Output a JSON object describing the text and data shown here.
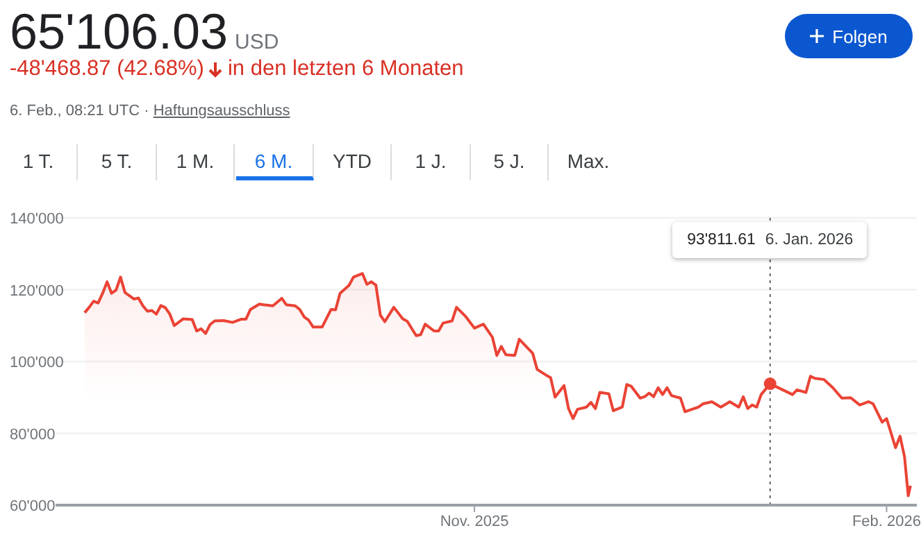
{
  "chart_data": {
    "type": "area",
    "title": "65'106.03",
    "subtitle": "-48'468.87 (42.68%)",
    "annotations": [
      "USD",
      "in den letzten 6 Monaten",
      "6. Feb., 08:21 UTC ·",
      "Haftungsausschluss",
      "Folgen",
      "1 T.",
      "5 T.",
      "1 M.",
      "6 M.",
      "YTD",
      "1 J.",
      "5 J.",
      "Max.",
      "93'811.61",
      "6. Jan. 2026"
    ],
    "x": [
      "2025-08-06",
      "2025-08-07",
      "2025-08-08",
      "2025-08-09",
      "2025-08-10",
      "2025-08-11",
      "2025-08-12",
      "2025-08-13",
      "2025-08-14",
      "2025-08-15",
      "2025-08-17",
      "2025-08-18",
      "2025-08-19",
      "2025-08-20",
      "2025-08-21",
      "2025-08-22",
      "2025-08-23",
      "2025-08-24",
      "2025-08-25",
      "2025-08-26",
      "2025-08-28",
      "2025-08-30",
      "2025-08-31",
      "2025-09-01",
      "2025-09-02",
      "2025-09-03",
      "2025-09-04",
      "2025-09-06",
      "2025-09-08",
      "2025-09-10",
      "2025-09-11",
      "2025-09-12",
      "2025-09-14",
      "2025-09-15",
      "2025-09-17",
      "2025-09-19",
      "2025-09-20",
      "2025-09-22",
      "2025-09-23",
      "2025-09-24",
      "2025-09-25",
      "2025-09-26",
      "2025-09-28",
      "2025-09-30",
      "2025-10-01",
      "2025-10-02",
      "2025-10-04",
      "2025-10-05",
      "2025-10-07",
      "2025-10-08",
      "2025-10-09",
      "2025-10-10",
      "2025-10-11",
      "2025-10-12",
      "2025-10-14",
      "2025-10-15",
      "2025-10-16",
      "2025-10-17",
      "2025-10-19",
      "2025-10-20",
      "2025-10-21",
      "2025-10-23",
      "2025-10-24",
      "2025-10-25",
      "2025-10-27",
      "2025-10-28",
      "2025-10-30",
      "2025-11-01",
      "2025-11-03",
      "2025-11-05",
      "2025-11-06",
      "2025-11-07",
      "2025-11-08",
      "2025-11-10",
      "2025-11-11",
      "2025-11-12",
      "2025-11-14",
      "2025-11-15",
      "2025-11-17",
      "2025-11-18",
      "2025-11-19",
      "2025-11-21",
      "2025-11-22",
      "2025-11-23",
      "2025-11-24",
      "2025-11-26",
      "2025-11-27",
      "2025-11-28",
      "2025-11-29",
      "2025-12-01",
      "2025-12-02",
      "2025-12-04",
      "2025-12-05",
      "2025-12-06",
      "2025-12-08",
      "2025-12-09",
      "2025-12-10",
      "2025-12-11",
      "2025-12-12",
      "2025-12-13",
      "2025-12-14",
      "2025-12-15",
      "2025-12-17",
      "2025-12-18",
      "2025-12-20",
      "2025-12-21",
      "2025-12-22",
      "2025-12-24",
      "2025-12-26",
      "2025-12-28",
      "2025-12-30",
      "2025-12-31",
      "2026-01-01",
      "2026-01-02",
      "2026-01-03",
      "2026-01-04",
      "2026-01-06",
      "2026-01-11",
      "2026-01-12",
      "2026-01-14",
      "2026-01-15",
      "2026-01-16",
      "2026-01-18",
      "2026-01-20",
      "2026-01-22",
      "2026-01-24",
      "2026-01-26",
      "2026-01-28",
      "2026-01-29",
      "2026-01-31",
      "2026-02-01",
      "2026-02-03",
      "2026-02-04",
      "2026-02-05",
      "2026-02-05T20:00",
      "2026-02-06T08:00"
    ],
    "series": [
      {
        "color": "#ea4335",
        "values": [
          113600,
          115100,
          116800,
          116300,
          119000,
          122200,
          119000,
          119900,
          123500,
          119200,
          117400,
          117700,
          115500,
          114000,
          114200,
          113200,
          115600,
          115000,
          113200,
          110000,
          111900,
          111700,
          108500,
          109100,
          107800,
          110300,
          111300,
          111400,
          110900,
          111800,
          111800,
          114500,
          116000,
          115800,
          115500,
          117600,
          115800,
          115500,
          114500,
          112400,
          111500,
          109600,
          109600,
          114500,
          114400,
          119000,
          121200,
          123500,
          124500,
          121500,
          122200,
          121300,
          112900,
          111100,
          115100,
          113500,
          111900,
          111200,
          107200,
          107500,
          110400,
          108500,
          108500,
          110700,
          111300,
          115100,
          112600,
          109300,
          110400,
          106800,
          101700,
          104200,
          101900,
          101700,
          106200,
          104900,
          102300,
          97800,
          96200,
          95500,
          90100,
          93300,
          86900,
          84100,
          86700,
          87300,
          88600,
          86900,
          91400,
          91000,
          86300,
          87300,
          93600,
          93100,
          89800,
          90200,
          91200,
          90200,
          92700,
          90800,
          92700,
          90500,
          89800,
          86000,
          86900,
          87300,
          88200,
          88800,
          87300,
          88800,
          87300,
          90200,
          86900,
          87900,
          87300,
          90800,
          93800,
          90800,
          92100,
          91400,
          95900,
          95300,
          95000,
          92700,
          89800,
          89900,
          87900,
          88800,
          88200,
          83100,
          84100,
          76000,
          79200,
          73500,
          62600,
          65400
        ]
      }
    ],
    "xlim": [
      "2025-07-30T12:00",
      "2026-02-07T18:00"
    ],
    "xticks": [
      {
        "value": "2025-11-01",
        "label": "Nov. 2025"
      },
      {
        "value": "2026-02-01",
        "label": "Feb. 2026"
      }
    ],
    "ylim": [
      60000,
      140000
    ],
    "yticks": [
      {
        "value": 60000,
        "label": "60'000"
      },
      {
        "value": 80000,
        "label": "80'000"
      },
      {
        "value": 100000,
        "label": "100'000"
      },
      {
        "value": 120000,
        "label": "120'000"
      },
      {
        "value": 140000,
        "label": "140'000"
      }
    ],
    "ref_lines": [
      {
        "axis": "x",
        "value": "2026-01-06",
        "line_style": "dotted",
        "color": "#5f6368"
      }
    ],
    "grid": "y",
    "marker": "none",
    "legend": false
  }
}
